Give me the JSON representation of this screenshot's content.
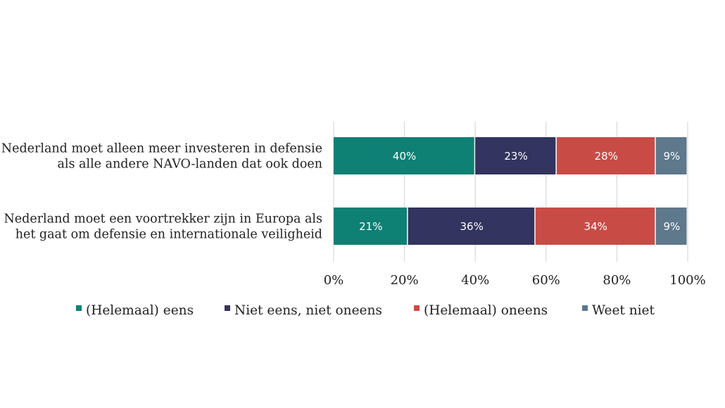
{
  "chart_data": {
    "type": "bar",
    "orientation": "horizontal",
    "stacked": true,
    "categories": [
      [
        "Nederland moet alleen meer investeren in defensie",
        "als alle andere NAVO-landen dat ook doen"
      ],
      [
        "Nederland moet een voortrekker zijn in Europa als",
        "het gaat om defensie en internationale veiligheid"
      ]
    ],
    "series": [
      {
        "name": "(Helemaal) eens",
        "color": "#0e8074",
        "values": [
          40,
          21
        ],
        "labels": [
          "40%",
          "21%"
        ]
      },
      {
        "name": "Niet eens, niet oneens",
        "color": "#33345f",
        "values": [
          23,
          36
        ],
        "labels": [
          "23%",
          "36%"
        ]
      },
      {
        "name": "(Helemaal) oneens",
        "color": "#c94b46",
        "values": [
          28,
          34
        ],
        "labels": [
          "28%",
          "34%"
        ]
      },
      {
        "name": "Weet niet",
        "color": "#5e788c",
        "values": [
          9,
          9
        ],
        "labels": [
          "9%",
          "9%"
        ]
      }
    ],
    "xlim": [
      0,
      100
    ],
    "xticks": [
      0,
      20,
      40,
      60,
      80,
      100
    ],
    "xtick_labels": [
      "0%",
      "20%",
      "40%",
      "60%",
      "80%",
      "100%"
    ],
    "grid": "vertical",
    "legend_position": "bottom"
  }
}
